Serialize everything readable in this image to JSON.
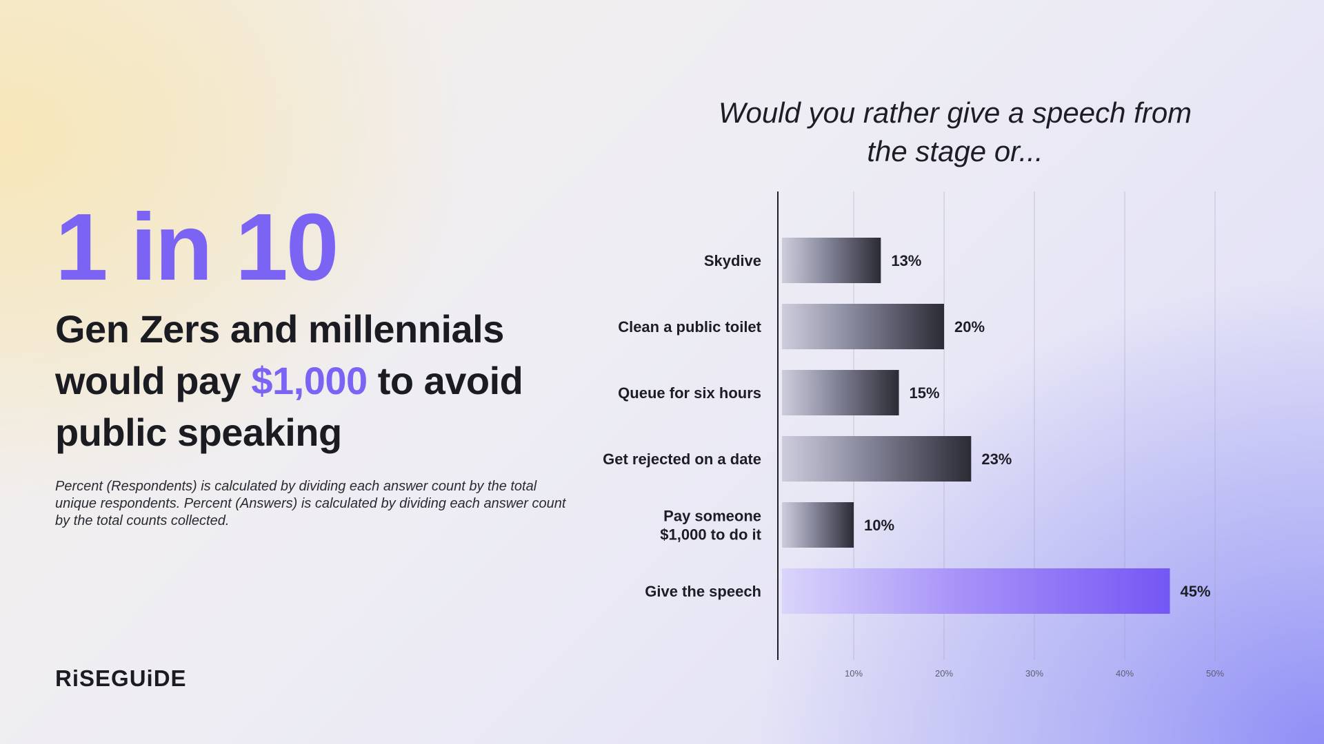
{
  "headline": {
    "big": "1 in 10",
    "sub_part1": "Gen Zers and millennials would pay ",
    "sub_accent": "$1,000",
    "sub_part2": " to avoid public speaking"
  },
  "footnote": "Percent (Respondents) is calculated by dividing each answer count by the total unique respondents. Percent (Answers) is calculated by dividing each answer count by the total counts collected.",
  "logo": "RiSEGUiDE",
  "colors": {
    "accent": "#7b63f4",
    "bar_dark": "#2e2e38",
    "highlight_bar": "#7b5cf5"
  },
  "chart_data": {
    "type": "bar",
    "orientation": "horizontal",
    "title": "Would you rather give a speech from the stage or...",
    "categories": [
      [
        "Skydive"
      ],
      [
        "Clean a public toilet"
      ],
      [
        "Queue for six hours"
      ],
      [
        "Get rejected on a date"
      ],
      [
        "Pay someone",
        "$1,000 to do it"
      ],
      [
        "Give the speech"
      ]
    ],
    "values": [
      13,
      20,
      15,
      23,
      10,
      45
    ],
    "value_labels": [
      "13%",
      "20%",
      "15%",
      "23%",
      "10%",
      "45%"
    ],
    "highlight_index": 5,
    "xlim": [
      1.6,
      50
    ],
    "x_ticks": [
      10,
      20,
      30,
      40,
      50
    ],
    "x_tick_labels": [
      "10%",
      "20%",
      "30%",
      "40%",
      "50%"
    ],
    "grid": true,
    "legend": "none"
  }
}
